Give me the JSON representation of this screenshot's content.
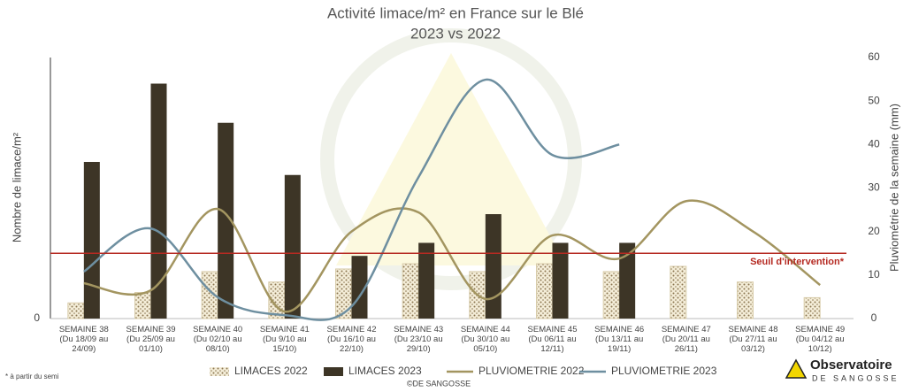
{
  "chart_data": {
    "type": "bar_line",
    "title": "Activité limace/m² en France sur le Blé",
    "subtitle": "2023 vs 2022",
    "y_label": "Nombre de limace/m²",
    "y2_label": "Pluviométrie de la semaine (mm)",
    "categories": [
      "SEMAINE 38\n(Du 18/09 au\n24/09)",
      "SEMAINE 39\n(Du 25/09 au\n01/10)",
      "SEMAINE 40\n(Du 02/10 au\n08/10)",
      "SEMAINE 41\n(Du 9/10 au\n15/10)",
      "SEMAINE 42\n(Du 16/10 au\n22/10)",
      "SEMAINE 43\n(Du 23/10 au\n29/10)",
      "SEMAINE 44\n(Du 30/10 au\n05/10)",
      "SEMAINE 45\n(Du 06/11 au\n12/11)",
      "SEMAINE 46\n(Du 13/11 au\n19/11)",
      "SEMAINE 47\n(Du 20/11 au\n26/11)",
      "SEMAINE 48\n(Du 27/11 au\n03/12)",
      "SEMAINE 49\n(Du 04/12 au\n10/12)"
    ],
    "series": [
      {
        "name": "LIMACES 2022",
        "kind": "bar",
        "color": "#8a7550",
        "values": [
          0.6,
          1.0,
          1.8,
          1.4,
          1.9,
          2.1,
          1.8,
          2.1,
          1.8,
          2.0,
          1.4,
          0.8
        ]
      },
      {
        "name": "LIMACES 2023",
        "kind": "bar",
        "color": "#3d3526",
        "values": [
          6.0,
          9.0,
          7.5,
          5.5,
          2.4,
          2.9,
          4.0,
          2.9,
          2.9,
          null,
          null,
          null
        ]
      },
      {
        "name": "PLUVIOMETRIE 2022",
        "kind": "line",
        "axis": "y2",
        "color": "#a39560",
        "values": [
          8.1,
          6.5,
          25.2,
          1.6,
          20,
          24.4,
          4.5,
          19.1,
          13.8,
          27,
          20,
          7.7
        ]
      },
      {
        "name": "PLUVIOMETRIE 2023",
        "kind": "line",
        "axis": "y2",
        "color": "#6e8fa0",
        "values": [
          10.8,
          20.7,
          4.9,
          0.8,
          2.8,
          32.5,
          54.9,
          37.6,
          40.0,
          null,
          null,
          null
        ]
      }
    ],
    "threshold": {
      "value": 2.5,
      "label": "Seuil d'intervention*",
      "color": "#b52a22"
    },
    "ylim": [
      0,
      10
    ],
    "yticks": [
      0
    ],
    "y2lim": [
      0,
      60
    ],
    "y2ticks": [
      0,
      10,
      20,
      30,
      40,
      50,
      60
    ],
    "footnote": "* à partir du semi",
    "credit": "©DE SANGOSSE",
    "logo": {
      "name": "Observatoire",
      "sub": "DE SANGOSSE"
    }
  }
}
